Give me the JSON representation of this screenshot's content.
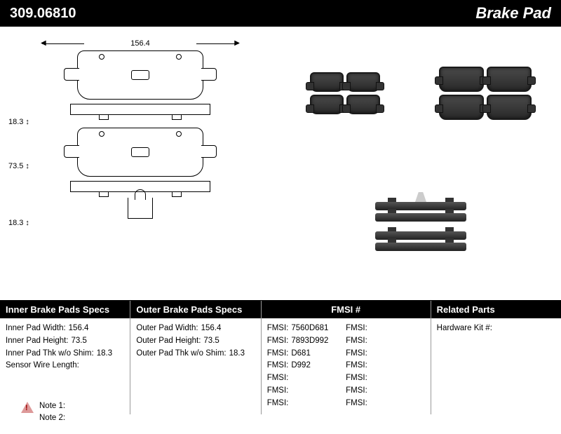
{
  "header": {
    "part_number": "309.06810",
    "title": "Brake Pad"
  },
  "dimensions": {
    "width": "156.4",
    "inner_height": "73.5",
    "thickness_top": "18.3",
    "thickness_bottom": "18.3"
  },
  "spec_columns": [
    {
      "header": "Inner Brake Pads Specs",
      "rows": [
        {
          "label": "Inner Pad Width:",
          "value": "156.4"
        },
        {
          "label": "Inner Pad Height:",
          "value": "73.5"
        },
        {
          "label": "Inner Pad Thk w/o Shim:",
          "value": "18.3"
        },
        {
          "label": "Sensor Wire Length:",
          "value": ""
        }
      ]
    },
    {
      "header": "Outer Brake Pads Specs",
      "rows": [
        {
          "label": "Outer Pad Width:",
          "value": "156.4"
        },
        {
          "label": "Outer Pad Height:",
          "value": "73.5"
        },
        {
          "label": "Outer Pad Thk w/o Shim:",
          "value": "18.3"
        }
      ]
    },
    {
      "header": "FMSI #",
      "fmsi_left": [
        "7560D681",
        "7893D992",
        "D681",
        "D992",
        "",
        "",
        ""
      ],
      "fmsi_right": [
        "",
        "",
        "",
        "",
        "",
        "",
        ""
      ]
    },
    {
      "header": "Related Parts",
      "rows": [
        {
          "label": "Hardware Kit #:",
          "value": ""
        }
      ]
    }
  ],
  "notes": {
    "note1_label": "Note 1:",
    "note2_label": "Note 2:"
  },
  "colors": {
    "header_bg": "#000000",
    "header_fg": "#ffffff",
    "text": "#000000"
  }
}
